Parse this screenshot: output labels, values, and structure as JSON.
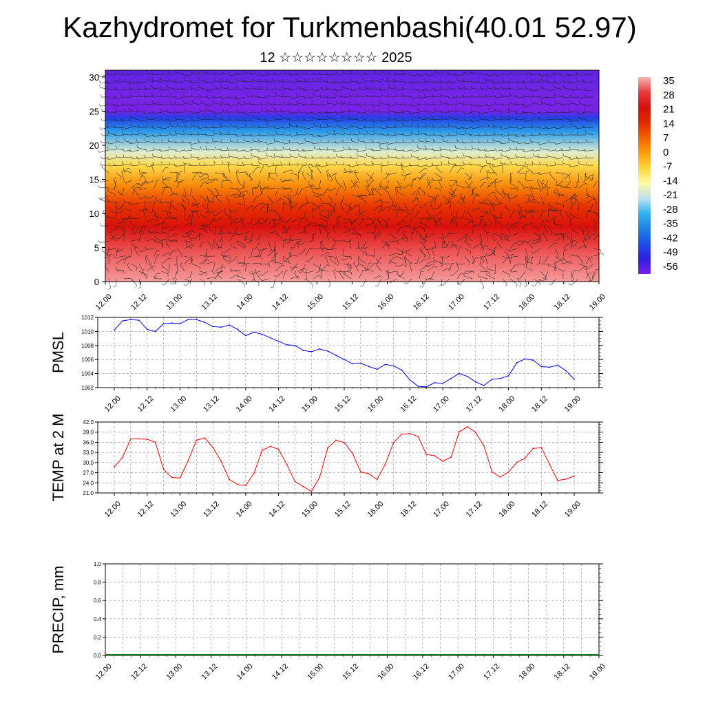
{
  "header": {
    "title": "Kazhydromet for Turkmenbashi(40.01 52.97)",
    "subtitle": "12 ☆☆☆☆☆☆☆☆ 2025"
  },
  "chart_data": [
    {
      "type": "heatmap",
      "description_variable": "temperature cross-section with wind barbs",
      "x_ticks": [
        "12.00",
        "12.12",
        "13.00",
        "13.12",
        "14.00",
        "14.12",
        "15.00",
        "15.12",
        "16.00",
        "16.12",
        "17.00",
        "17.12",
        "18.00",
        "18.12",
        "19.00"
      ],
      "y_ticks": [
        0,
        5,
        10,
        15,
        20,
        25,
        30
      ],
      "ylim": [
        0,
        31
      ],
      "z_profile": [
        {
          "y": 0,
          "v": 33
        },
        {
          "y": 4,
          "v": 28
        },
        {
          "y": 8,
          "v": 20
        },
        {
          "y": 11,
          "v": 12
        },
        {
          "y": 14,
          "v": 2
        },
        {
          "y": 17,
          "v": -8
        },
        {
          "y": 19,
          "v": -18
        },
        {
          "y": 22,
          "v": -32
        },
        {
          "y": 24,
          "v": -45
        },
        {
          "y": 25,
          "v": -58
        },
        {
          "y": 27,
          "v": -56
        },
        {
          "y": 31,
          "v": -54
        }
      ],
      "colorbar": {
        "labels": [
          "35",
          "28",
          "21",
          "14",
          "7",
          "0",
          "-7",
          "-14",
          "-21",
          "-28",
          "-35",
          "-42",
          "-49",
          "-56"
        ],
        "colors": [
          "#f7b6b6",
          "#e63a3a",
          "#d41010",
          "#e02a00",
          "#f26100",
          "#fd9b0a",
          "#fed640",
          "#fef9a0",
          "#bfe3f2",
          "#33b3ee",
          "#1e82e6",
          "#1f4fe6",
          "#2d1fe0",
          "#7a1fe8"
        ]
      }
    },
    {
      "type": "line",
      "ylabel": "PMSL",
      "ylim": [
        1002,
        1012
      ],
      "y_ticks": [
        "1002",
        "1004",
        "1006",
        "1008",
        "1010",
        "1012"
      ],
      "x_ticks": [
        "12.00",
        "12.12",
        "13.00",
        "13.12",
        "14.00",
        "14.12",
        "15.00",
        "15.12",
        "16.00",
        "16.12",
        "17.00",
        "17.12",
        "18.00",
        "18.12",
        "19.00"
      ],
      "color": "#0000ff",
      "values": [
        1010.2,
        1011.5,
        1011.7,
        1011.6,
        1010.3,
        1010.0,
        1011.1,
        1011.2,
        1011.1,
        1011.7,
        1011.7,
        1011.3,
        1010.7,
        1010.6,
        1010.9,
        1010.3,
        1009.4,
        1009.9,
        1009.6,
        1009.1,
        1008.6,
        1008.1,
        1008.0,
        1007.3,
        1007.1,
        1007.5,
        1007.2,
        1006.6,
        1006.0,
        1005.4,
        1005.5,
        1005.0,
        1004.6,
        1005.3,
        1005.1,
        1004.5,
        1003.1,
        1002.2,
        1002.1,
        1002.7,
        1002.6,
        1003.3,
        1004.0,
        1003.6,
        1002.8,
        1002.3,
        1003.2,
        1003.3,
        1003.7,
        1005.5,
        1006.1,
        1005.9,
        1005.0,
        1004.9,
        1005.2,
        1004.4,
        1003.2
      ]
    },
    {
      "type": "line",
      "ylabel": "TEMP at 2 M",
      "ylim": [
        21,
        42
      ],
      "y_ticks": [
        "21.0",
        "24.0",
        "27.0",
        "30.0",
        "33.0",
        "36.0",
        "39.0",
        "42.0"
      ],
      "x_ticks": [
        "12.00",
        "12.12",
        "13.00",
        "13.12",
        "14.00",
        "14.12",
        "15.00",
        "15.12",
        "16.00",
        "16.12",
        "17.00",
        "17.12",
        "18.00",
        "18.12",
        "19.00"
      ],
      "color": "#ff0000",
      "values": [
        28.7,
        31.5,
        37.0,
        37.0,
        36.9,
        36.0,
        28.0,
        25.6,
        25.4,
        30.6,
        36.6,
        37.3,
        34.5,
        30.4,
        25.0,
        23.5,
        23.2,
        26.8,
        33.6,
        34.8,
        33.9,
        29.5,
        24.4,
        22.9,
        21.4,
        25.6,
        34.4,
        36.6,
        35.9,
        32.8,
        27.2,
        26.7,
        25.0,
        29.5,
        35.9,
        38.4,
        38.6,
        37.7,
        32.4,
        32.0,
        30.4,
        31.6,
        39.1,
        40.6,
        38.9,
        35.0,
        27.2,
        25.7,
        27.2,
        30.0,
        31.3,
        34.2,
        34.4,
        29.5,
        24.7,
        25.1,
        26.0
      ]
    },
    {
      "type": "bar",
      "ylabel": "PRECIP, mm",
      "ylim": [
        0,
        1.0
      ],
      "y_ticks": [
        "0.0",
        "0.2",
        "0.4",
        "0.6",
        "0.8",
        "1.0"
      ],
      "x_ticks": [
        "12.00",
        "12.12",
        "13.00",
        "13.12",
        "14.00",
        "14.12",
        "15.00",
        "15.12",
        "16.00",
        "16.12",
        "17.00",
        "17.12",
        "18.00",
        "18.12",
        "19.00"
      ],
      "values": []
    }
  ]
}
